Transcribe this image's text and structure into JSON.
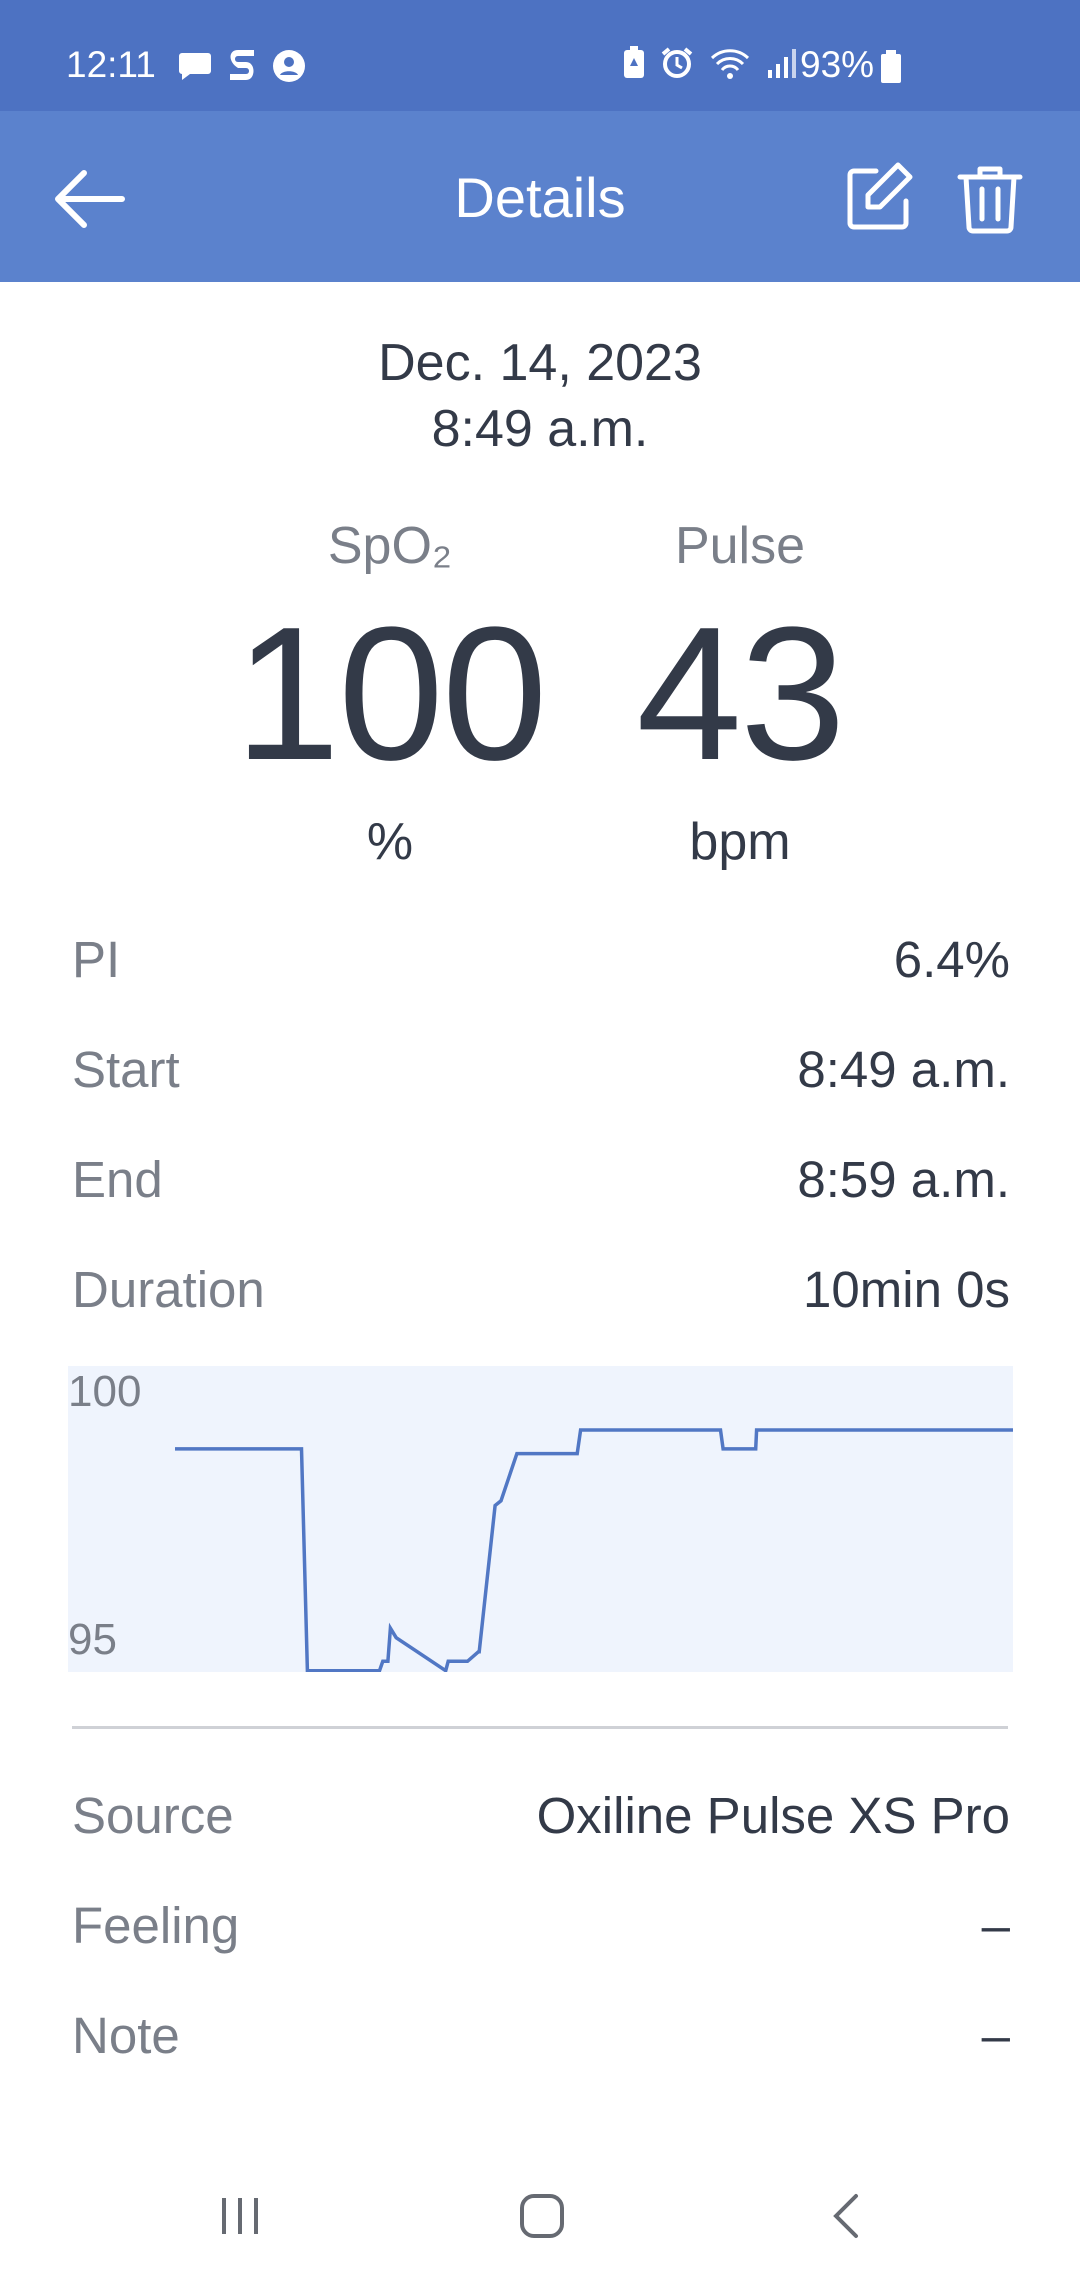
{
  "status_bar": {
    "time": "12:11",
    "battery": "93%",
    "icons_left": [
      "message-icon",
      "sync-icon",
      "account-icon"
    ],
    "icons_right": [
      "battery-saver-icon",
      "alarm-icon",
      "wifi-icon",
      "signal-icon",
      "battery-icon"
    ]
  },
  "app_bar": {
    "title": "Details",
    "back_icon": "arrow-left-icon",
    "edit_icon": "edit-icon",
    "delete_icon": "trash-icon"
  },
  "record": {
    "date": "Dec. 14, 2023",
    "time": "8:49 a.m."
  },
  "metrics": {
    "spo2": {
      "label": "SpO₂",
      "value": "100",
      "unit": "%"
    },
    "pulse": {
      "label": "Pulse",
      "value": "43",
      "unit": "bpm"
    }
  },
  "details": [
    {
      "label": "PI",
      "value": "6.4%"
    },
    {
      "label": "Start",
      "value": "8:49 a.m."
    },
    {
      "label": "End",
      "value": "8:59 a.m."
    },
    {
      "label": "Duration",
      "value": "10min 0s"
    }
  ],
  "chart_data": {
    "type": "line",
    "y_tick_labels": [
      "100",
      "95"
    ],
    "ylim": [
      94.5,
      100.5
    ],
    "grid": false,
    "series": [
      {
        "x": [
          0,
          15.1,
          15.8,
          24.4,
          24.8,
          25.4,
          25.7,
          26.4,
          32.3,
          32.6,
          34.9,
          36.2,
          36.3,
          38.2,
          38.9,
          40.8,
          48.0,
          48.4,
          51.0,
          53.1,
          65.1,
          65.4,
          69.3,
          69.4,
          100
        ],
        "y": [
          99.6,
          99.6,
          94.9,
          94.9,
          95.1,
          95.1,
          95.8,
          95.6,
          94.9,
          95.1,
          95.1,
          95.3,
          95.3,
          98.4,
          98.5,
          99.5,
          99.5,
          100,
          100,
          100,
          100,
          99.6,
          99.6,
          100,
          100
        ]
      }
    ],
    "colors": {
      "line": "#5177c4",
      "background": "#eff4fd",
      "ticks": "#7a7f89"
    }
  },
  "extra": [
    {
      "label": "Source",
      "value": "Oxiline Pulse XS Pro"
    },
    {
      "label": "Feeling",
      "value": "–"
    },
    {
      "label": "Note",
      "value": "–"
    }
  ],
  "nav_bar": {
    "recents_icon": "recents-icon",
    "home_icon": "home-icon",
    "back_icon": "nav-back-icon"
  }
}
